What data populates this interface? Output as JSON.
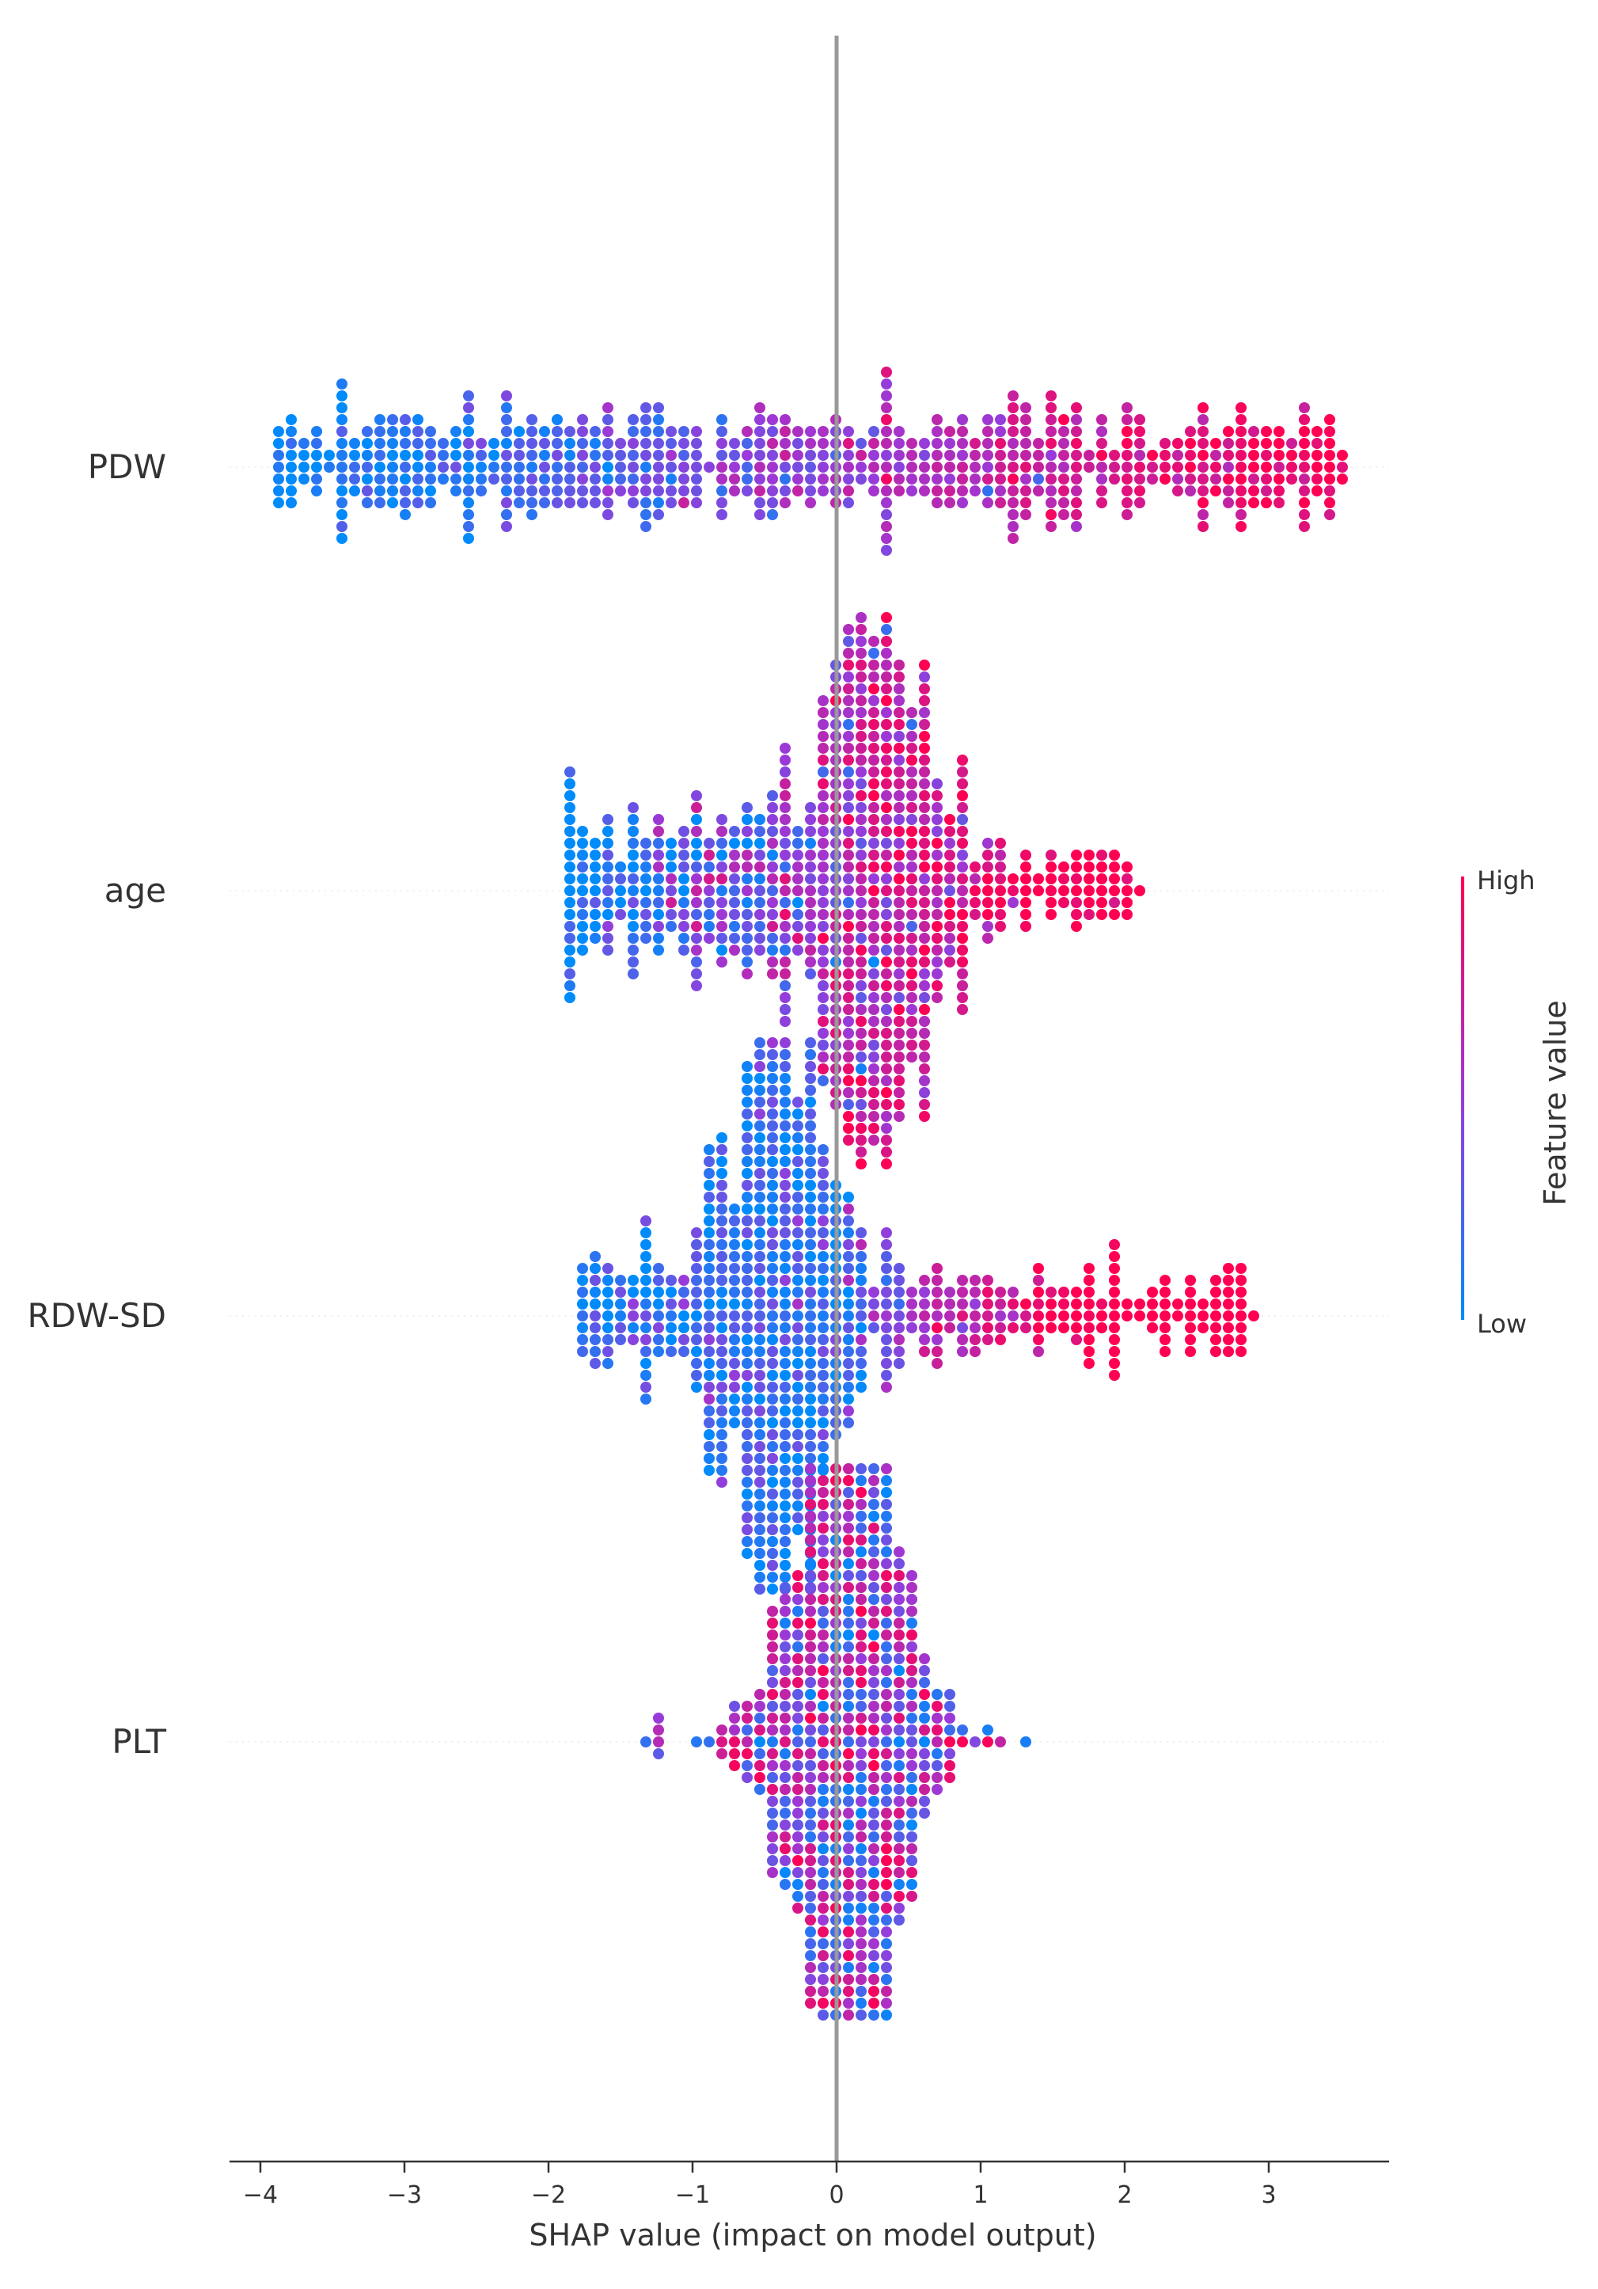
{
  "chart_data": {
    "type": "scatter",
    "subtype": "shap-beeswarm",
    "xlabel": "SHAP value (impact on model output)",
    "xlim": [
      -4.4,
      3.9
    ],
    "x_ticks": [
      -4,
      -3,
      -2,
      -1,
      0,
      1,
      2,
      3
    ],
    "x_tick_labels": [
      "−4",
      "−3",
      "−2",
      "−1",
      "0",
      "1",
      "2",
      "3"
    ],
    "zero_line": 0,
    "features": [
      {
        "name": "PDW",
        "min": -3.9,
        "max": 3.5,
        "summary": "wide spread; low feature values (blue) on negative side, high values (red) on positive side"
      },
      {
        "name": "age",
        "min": -1.9,
        "max": 2.1,
        "summary": "dense cluster around 0 to 0.5; low values negative, high values positive"
      },
      {
        "name": "RDW-SD",
        "min": -1.8,
        "max": 2.9,
        "summary": "low values clustered at -0.5 to 0; high values tail out to +2.9"
      },
      {
        "name": "PLT",
        "min": -1.5,
        "max": 1.4,
        "summary": "compact mixed cluster centered near 0"
      }
    ],
    "colorbar": {
      "title": "Feature value",
      "high_label": "High",
      "low_label": "Low",
      "high_color": "#ff0052",
      "low_color": "#008bfb"
    },
    "grid": false
  }
}
